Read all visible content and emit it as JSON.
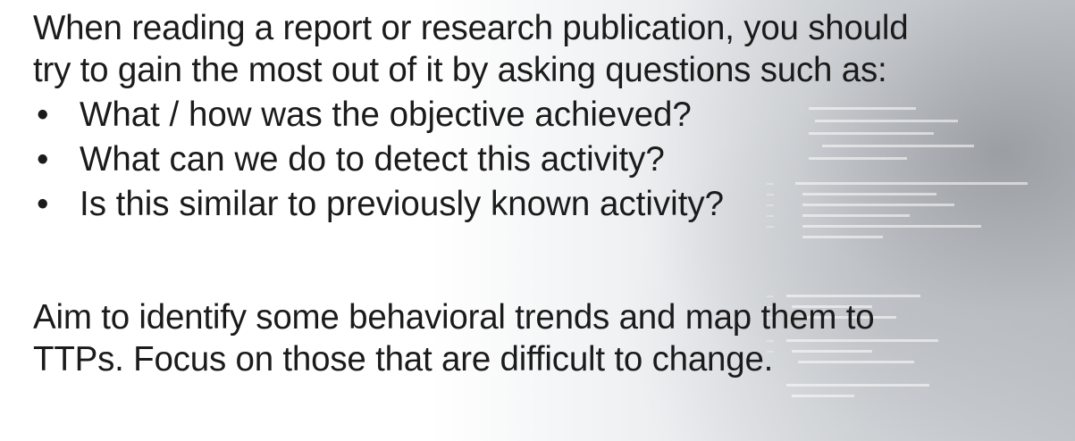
{
  "intro": {
    "line1": "When reading a report or research publication, you should",
    "line2": "try to gain the most out of it by asking questions such as:"
  },
  "bullet_glyph": "•",
  "questions": [
    "What / how was the objective achieved?",
    "What can we do to detect this activity?",
    "Is this similar to previously known activity?"
  ],
  "closing": {
    "line1": "Aim to identify some behavioral trends and map them to",
    "line2": "TTPs. Focus on those that are difficult to change."
  }
}
